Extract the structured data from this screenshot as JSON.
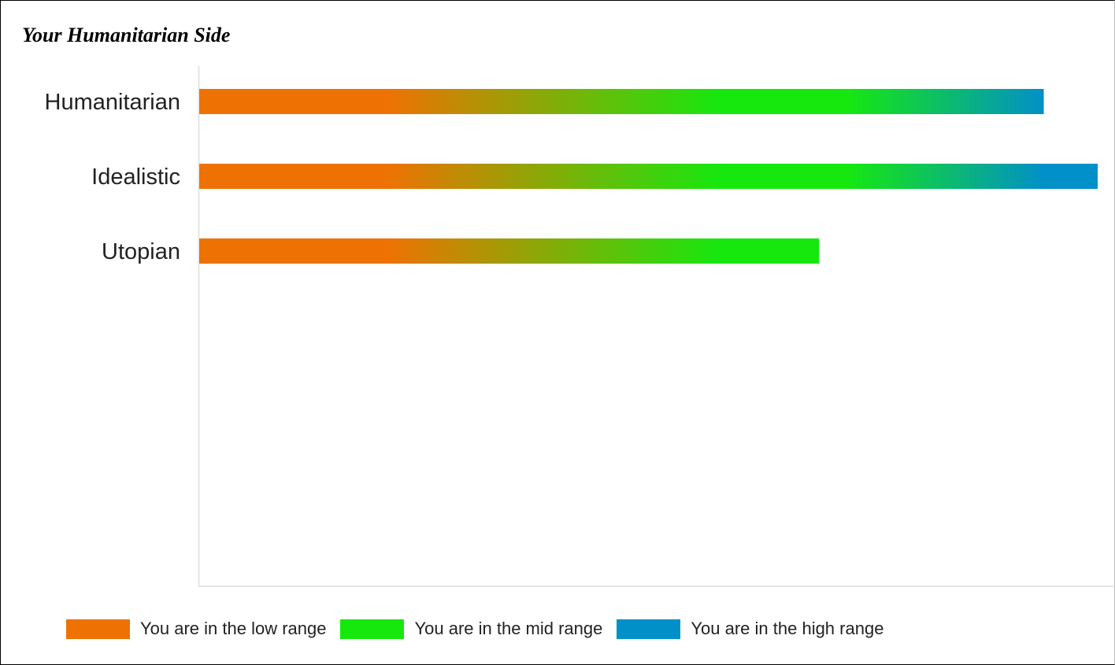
{
  "page": {
    "title": "Your Humanitarian Side"
  },
  "colors": {
    "low": "#ee7203",
    "mid": "#16e80e",
    "high": "#0290c8",
    "axis": "#e4e4e4"
  },
  "chart_data": {
    "type": "bar",
    "orientation": "horizontal",
    "title": "",
    "xlabel": "",
    "ylabel": "",
    "categories": [
      "Humanitarian",
      "Idealistic",
      "Utopian"
    ],
    "values": [
      94,
      100,
      69
    ],
    "xlim": [
      0,
      100
    ],
    "grid": false,
    "fill": "gradient low-mid-high along value",
    "legend": {
      "position": "bottom-left",
      "items": [
        {
          "label": "You are in the low range",
          "color": "#ee7203"
        },
        {
          "label": "You are in the mid range",
          "color": "#16e80e"
        },
        {
          "label": "You are in the high range",
          "color": "#0290c8"
        }
      ]
    }
  }
}
